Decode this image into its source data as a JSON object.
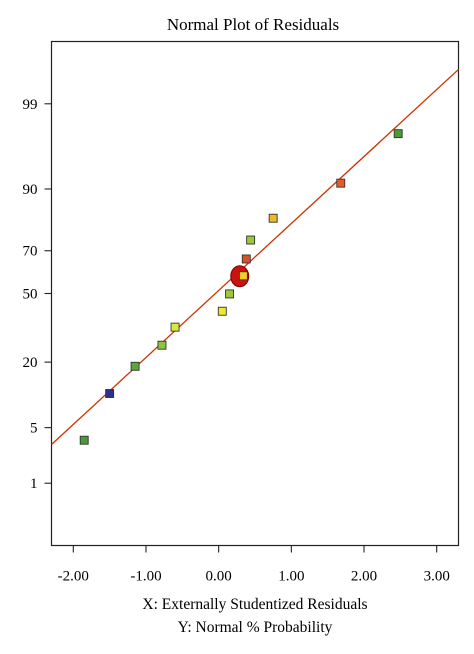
{
  "chart_data": {
    "type": "scatter",
    "title": "Normal Plot of Residuals",
    "xlabel": "X: Externally Studentized Residuals",
    "ylabel": "Y: Normal % Probability",
    "xlim": [
      -2.3,
      3.3
    ],
    "x_ticks": [
      -2.0,
      -1.0,
      0.0,
      1.0,
      2.0,
      3.0
    ],
    "x_tick_labels": [
      "-2.00",
      "-1.00",
      "0.00",
      "1.00",
      "2.00",
      "3.00"
    ],
    "y_scale": "normal-probability",
    "ylim": [
      0.1,
      99.9
    ],
    "y_ticks": [
      1,
      5,
      20,
      50,
      70,
      90,
      99
    ],
    "y_tick_labels": [
      "1",
      "5",
      "20",
      "50",
      "70",
      "90",
      "99"
    ],
    "grid": false,
    "legend": "none",
    "reference_line": {
      "color": "#cc3300",
      "points": [
        [
          -2.3,
          3.2
        ],
        [
          3.3,
          99.7
        ]
      ]
    },
    "points": [
      {
        "x": -1.85,
        "y": 3.6,
        "color": "#4a9a3a"
      },
      {
        "x": -1.5,
        "y": 11.0,
        "color": "#2e2e8c"
      },
      {
        "x": -1.15,
        "y": 18.6,
        "color": "#5aa83a"
      },
      {
        "x": -0.78,
        "y": 26.3,
        "color": "#8cc43c"
      },
      {
        "x": -0.6,
        "y": 34.0,
        "color": "#dde83a"
      },
      {
        "x": 0.05,
        "y": 41.4,
        "color": "#f2e82a"
      },
      {
        "x": 0.15,
        "y": 49.8,
        "color": "#9ac83a"
      },
      {
        "x": 0.34,
        "y": 58.6,
        "color": "#f0d020"
      },
      {
        "x": 0.38,
        "y": 66.4,
        "color": "#d8502a"
      },
      {
        "x": 0.44,
        "y": 74.4,
        "color": "#9ac83a"
      },
      {
        "x": 0.75,
        "y": 82.2,
        "color": "#f0b828"
      },
      {
        "x": 1.68,
        "y": 91.2,
        "color": "#e8582a"
      },
      {
        "x": 2.47,
        "y": 97.5,
        "color": "#4a9a3a"
      }
    ],
    "highlight": {
      "x": 0.29,
      "y": 58.4,
      "color": "#cc1111"
    }
  }
}
